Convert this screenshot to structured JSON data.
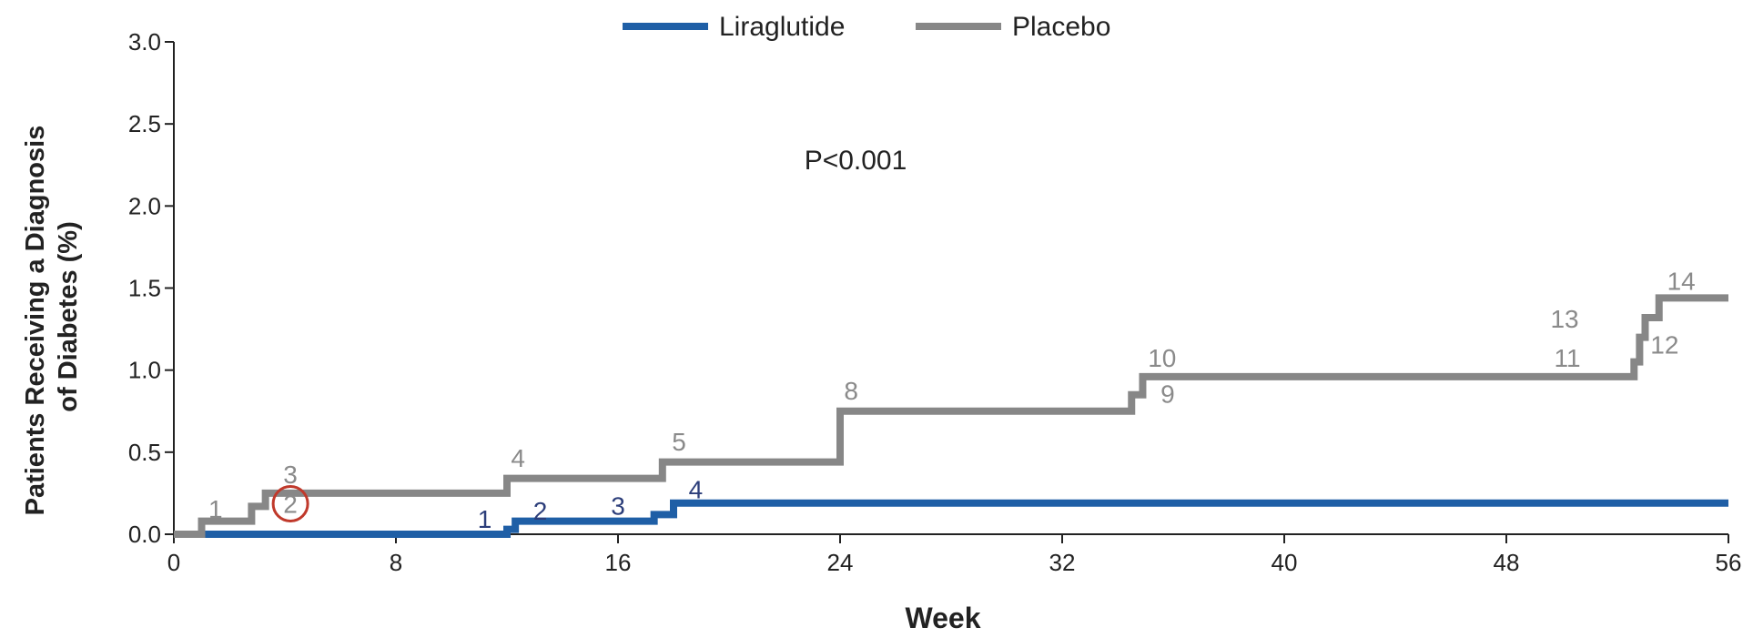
{
  "chart_data": {
    "type": "line",
    "xlabel": "Week",
    "ylabel_lines": [
      "Patients Receiving a Diagnosis",
      "of Diabetes (%)"
    ],
    "xlim": [
      0,
      56
    ],
    "ylim": [
      0,
      3.0
    ],
    "xticks": [
      0,
      8,
      16,
      24,
      32,
      40,
      48,
      56
    ],
    "yticks": [
      0.0,
      0.5,
      1.0,
      1.5,
      2.0,
      2.5,
      3.0
    ],
    "ytick_labels": [
      "0.0",
      "0.5",
      "1.0",
      "1.5",
      "2.0",
      "2.5",
      "3.0"
    ],
    "grid": false,
    "legend_position": "top-center",
    "annotation": "P<0.001",
    "series": [
      {
        "name": "Liraglutide",
        "color": "#1f5fa6",
        "steps": [
          [
            0,
            0.0
          ],
          [
            12.0,
            0.03
          ],
          [
            12.3,
            0.08
          ],
          [
            17.3,
            0.12
          ],
          [
            18.0,
            0.19
          ],
          [
            56,
            0.19
          ]
        ],
        "event_labels": [
          {
            "text": "1",
            "x": 11.2,
            "y": 0.04
          },
          {
            "text": "2",
            "x": 13.2,
            "y": 0.09
          },
          {
            "text": "3",
            "x": 16.0,
            "y": 0.12
          },
          {
            "text": "4",
            "x": 18.8,
            "y": 0.22
          }
        ]
      },
      {
        "name": "Placebo",
        "color": "#878787",
        "steps": [
          [
            0,
            0.0
          ],
          [
            1.0,
            0.08
          ],
          [
            2.8,
            0.17
          ],
          [
            3.3,
            0.25
          ],
          [
            12.0,
            0.34
          ],
          [
            17.6,
            0.44
          ],
          [
            24.0,
            0.75
          ],
          [
            34.5,
            0.85
          ],
          [
            34.9,
            0.96
          ],
          [
            52.6,
            1.05
          ],
          [
            52.8,
            1.2
          ],
          [
            53.0,
            1.32
          ],
          [
            53.5,
            1.44
          ],
          [
            56,
            1.44
          ]
        ],
        "event_labels": [
          {
            "text": "1",
            "x": 1.5,
            "y": 0.1
          },
          {
            "text": "3",
            "x": 4.2,
            "y": 0.31
          },
          {
            "text": "4",
            "x": 12.4,
            "y": 0.41
          },
          {
            "text": "5",
            "x": 18.2,
            "y": 0.51
          },
          {
            "text": "8",
            "x": 24.4,
            "y": 0.82
          },
          {
            "text": "10",
            "x": 35.6,
            "y": 1.02
          },
          {
            "text": "9",
            "x": 35.8,
            "y": 0.8
          },
          {
            "text": "11",
            "x": 50.2,
            "y": 1.02
          },
          {
            "text": "13",
            "x": 50.1,
            "y": 1.26
          },
          {
            "text": "12",
            "x": 53.7,
            "y": 1.1
          },
          {
            "text": "14",
            "x": 54.3,
            "y": 1.49
          }
        ]
      }
    ],
    "highlight_label": {
      "text": "2",
      "x": 4.2,
      "y": 0.13,
      "color": "#c0392b"
    }
  }
}
